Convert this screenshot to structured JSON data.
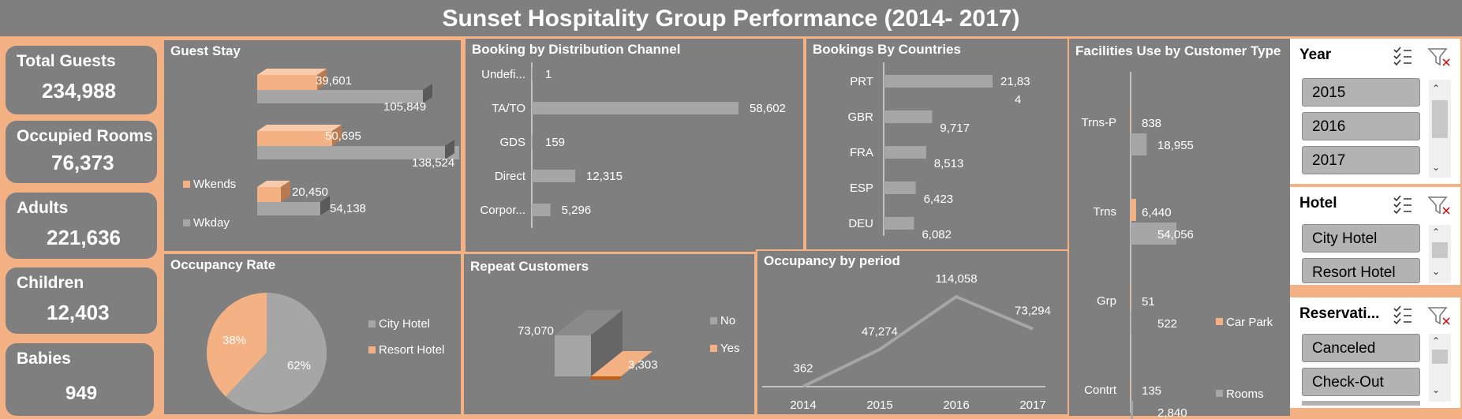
{
  "title": "Sunset Hospitality Group Performance (2014- 2017)",
  "kpis": [
    {
      "label": "Total Guests",
      "value": "234,988"
    },
    {
      "label": "Occupied Rooms",
      "value": "76,373"
    },
    {
      "label": "Adults",
      "value": "221,636"
    },
    {
      "label": "Children",
      "value": "12,403"
    },
    {
      "label": "Babies",
      "value": "949"
    }
  ],
  "colors": {
    "background": "#7f7f7f",
    "accent": "#f4b183",
    "gray_series": "#a6a6a6",
    "text": "#ffffff"
  },
  "chart_data": [
    {
      "type": "bar",
      "id": "guest_stay",
      "title": "Guest Stay",
      "series": [
        {
          "name": "Wkends",
          "color": "#f4b183",
          "values": [
            39601,
            50695,
            20450
          ],
          "labels": [
            "39,601",
            "50,695",
            "20,450"
          ]
        },
        {
          "name": "Wkday",
          "color": "#a6a6a6",
          "values": [
            105849,
            138524,
            54138
          ],
          "labels": [
            "105,849",
            "138,524",
            "54,138"
          ]
        }
      ],
      "legend": [
        "Wkends",
        "Wkday"
      ]
    },
    {
      "type": "bar",
      "id": "distribution_channel",
      "title": "Booking by Distribution Channel",
      "categories": [
        "Undefi...",
        "TA/TO",
        "GDS",
        "Direct",
        "Corpor..."
      ],
      "values": [
        1,
        58602,
        159,
        12315,
        5296
      ],
      "labels": [
        "1",
        "58,602",
        "159",
        "12,315",
        "5,296"
      ]
    },
    {
      "type": "bar",
      "id": "countries",
      "title": "Bookings By Countries",
      "categories": [
        "PRT",
        "GBR",
        "FRA",
        "ESP",
        "DEU"
      ],
      "values": [
        21834,
        9717,
        8513,
        6423,
        6082
      ],
      "labels": [
        "21,83",
        "9,717",
        "8,513",
        "6,423",
        "6,082"
      ],
      "label_wrap": "4"
    },
    {
      "type": "bar",
      "id": "facilities",
      "title": "Facilities Use by Customer Type",
      "categories": [
        "Trns-P",
        "Trns",
        "Grp",
        "Contrt"
      ],
      "series": [
        {
          "name": "Car Park",
          "color": "#f4b183",
          "values": [
            838,
            6440,
            51,
            135
          ],
          "labels": [
            "838",
            "6,440",
            "51",
            "135"
          ]
        },
        {
          "name": "Rooms",
          "color": "#a6a6a6",
          "values": [
            18955,
            54056,
            522,
            2840
          ],
          "labels": [
            "18,955",
            "54,056",
            "522",
            "2,840"
          ]
        }
      ]
    },
    {
      "type": "pie",
      "id": "occupancy_rate",
      "title": "Occupancy Rate",
      "slices": [
        {
          "name": "City Hotel",
          "value": 62,
          "label": "62%",
          "color": "#a6a6a6"
        },
        {
          "name": "Resort Hotel",
          "value": 38,
          "label": "38%",
          "color": "#f4b183"
        }
      ]
    },
    {
      "type": "bar",
      "id": "repeat_customers",
      "title": "Repeat Customers",
      "categories": [
        "No",
        "Yes"
      ],
      "values": [
        73070,
        3303
      ],
      "labels": [
        "73,070",
        "3,303"
      ],
      "colors": [
        "#a6a6a6",
        "#f4b183"
      ]
    },
    {
      "type": "line",
      "id": "occupancy_period",
      "title": "Occupancy by period",
      "x": [
        "2014",
        "2015",
        "2016",
        "2017"
      ],
      "values": [
        362,
        47274,
        114058,
        73294
      ],
      "labels": [
        "362",
        "47,274",
        "114,058",
        "73,294"
      ]
    }
  ],
  "slicers": [
    {
      "title": "Year",
      "items": [
        "2015",
        "2016",
        "2017"
      ]
    },
    {
      "title": "Hotel",
      "items": [
        "City Hotel",
        "Resort Hotel"
      ]
    },
    {
      "title": "Reservati...",
      "items": [
        "Canceled",
        "Check-Out"
      ]
    }
  ]
}
